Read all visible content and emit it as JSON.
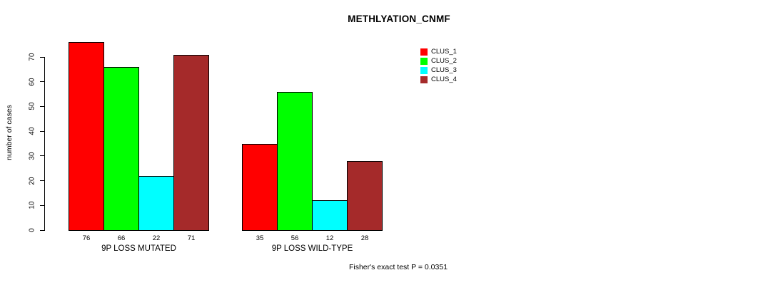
{
  "title": "METHLYATION_CNMF",
  "caption": "Fisher's exact test P = 0.0351",
  "y_axis": {
    "label": "number of cases",
    "ticks": [
      0,
      10,
      20,
      30,
      40,
      50,
      60,
      70
    ]
  },
  "legend": {
    "items": [
      {
        "label": "CLUS_1",
        "color": "#FF0000"
      },
      {
        "label": "CLUS_2",
        "color": "#00FF00"
      },
      {
        "label": "CLUS_3",
        "color": "#00FFFF"
      },
      {
        "label": "CLUS_4",
        "color": "#A52A2A"
      }
    ]
  },
  "chart_data": {
    "type": "bar",
    "title": "METHLYATION_CNMF",
    "xlabel": "",
    "ylabel": "number of cases",
    "ylim": [
      0,
      70
    ],
    "yticks": [
      0,
      10,
      20,
      30,
      40,
      50,
      60,
      70
    ],
    "categories": [
      "9P LOSS MUTATED",
      "9P LOSS WILD-TYPE"
    ],
    "series": [
      {
        "name": "CLUS_1",
        "color": "#FF0000",
        "values": [
          76,
          35
        ]
      },
      {
        "name": "CLUS_2",
        "color": "#00FF00",
        "values": [
          66,
          56
        ]
      },
      {
        "name": "CLUS_3",
        "color": "#00FFFF",
        "values": [
          22,
          12
        ]
      },
      {
        "name": "CLUS_4",
        "color": "#A52A2A",
        "values": [
          71,
          28
        ]
      }
    ],
    "bar_value_labels": true,
    "legend_entries": [
      "CLUS_1",
      "CLUS_2",
      "CLUS_3",
      "CLUS_4"
    ],
    "legend_position": "top-right",
    "grid": false,
    "annotation": "Fisher's exact test P = 0.0351"
  }
}
